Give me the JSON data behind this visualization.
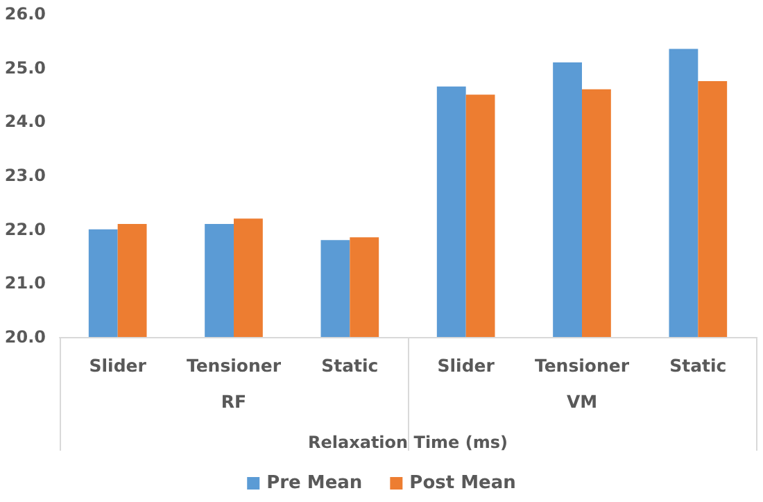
{
  "chart_data": {
    "type": "bar",
    "xlabel": "Relaxation Time (ms)",
    "categories": [
      "Slider",
      "Tensioner",
      "Static",
      "Slider",
      "Tensioner",
      "Static"
    ],
    "annotations": [
      "RF",
      "VM"
    ],
    "series": [
      {
        "name": "Pre Mean",
        "color": "#5b9bd5",
        "values": [
          22.0,
          22.1,
          21.8,
          24.65,
          25.1,
          25.35
        ]
      },
      {
        "name": "Post Mean",
        "color": "#ed7d31",
        "values": [
          22.1,
          22.2,
          21.85,
          24.5,
          24.6,
          24.75
        ]
      }
    ],
    "ylim": [
      20,
      26
    ],
    "yticks": [
      {
        "value": 20,
        "label": "20.0"
      },
      {
        "value": 21,
        "label": "21.0"
      },
      {
        "value": 22,
        "label": "22.0"
      },
      {
        "value": 23,
        "label": "23.0"
      },
      {
        "value": 24,
        "label": "24.0"
      },
      {
        "value": 25,
        "label": "25.0"
      },
      {
        "value": 26,
        "label": "26.0"
      }
    ],
    "grid": false,
    "legend": "bottom"
  }
}
